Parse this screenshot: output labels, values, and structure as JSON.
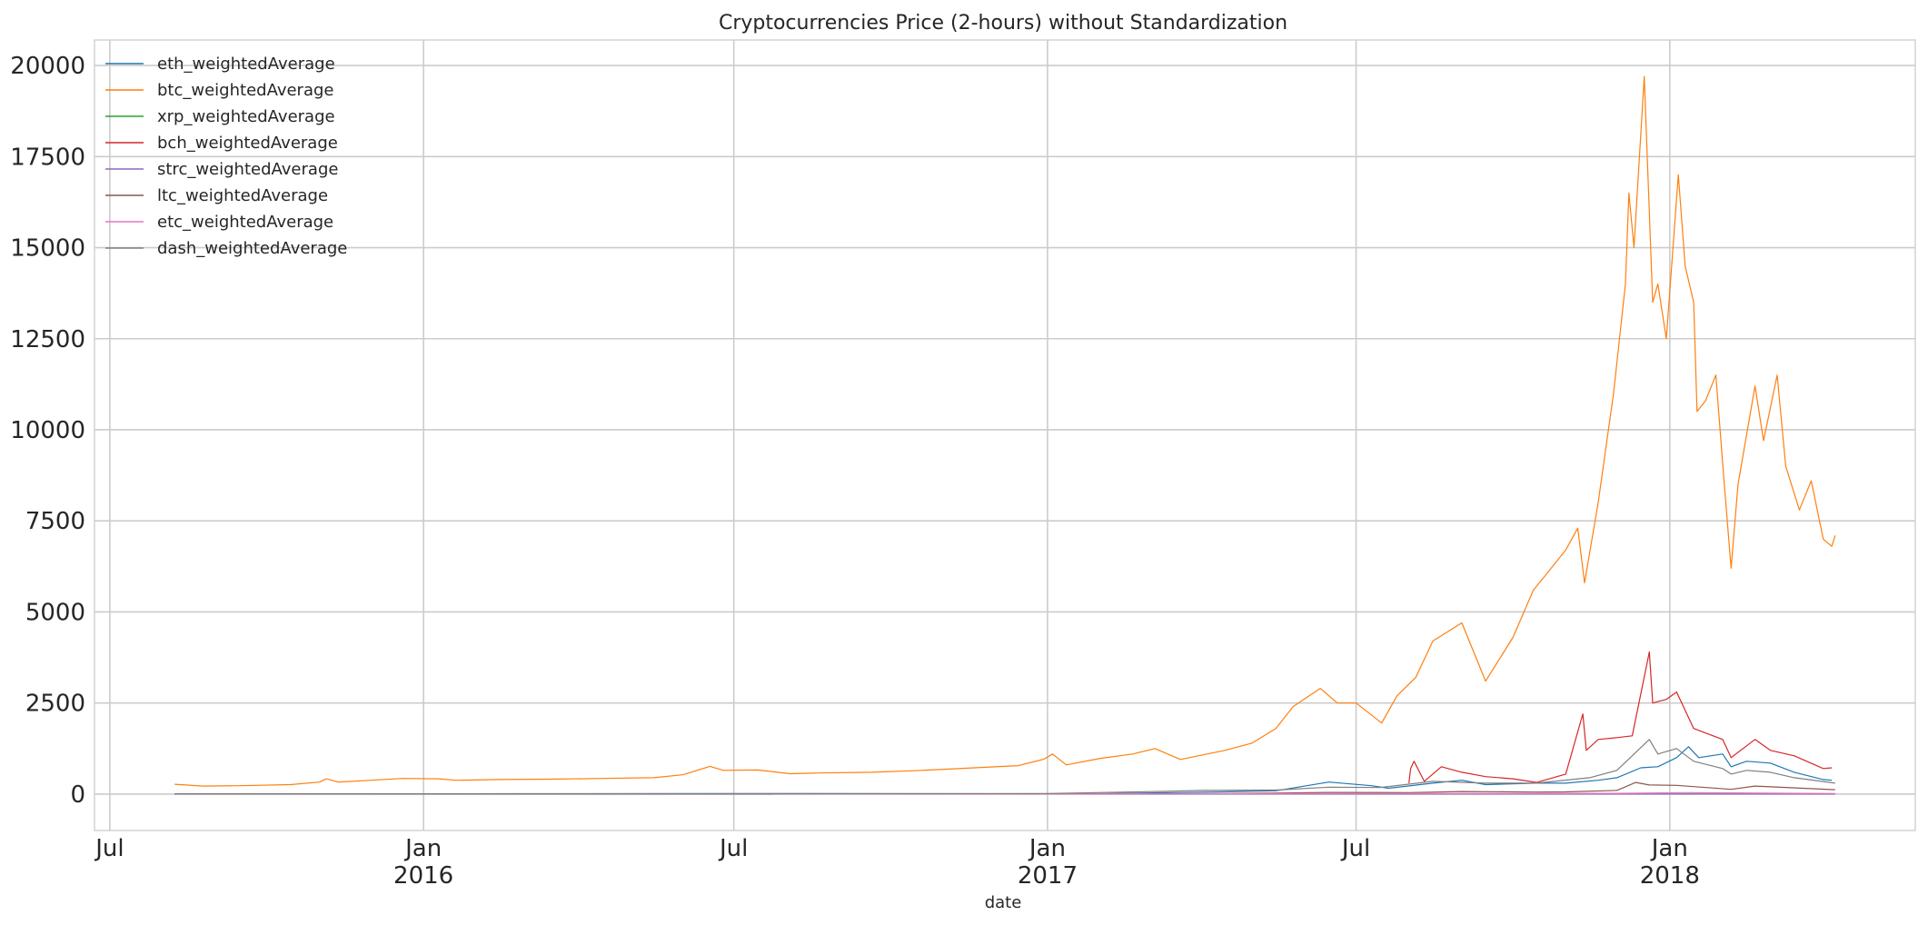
{
  "chart_data": {
    "type": "line",
    "title": "Cryptocurrencies Price (2-hours) without Standardization",
    "xlabel": "date",
    "ylabel": "",
    "xlim": [
      "2015-06-22",
      "2018-05-25"
    ],
    "ylim": [
      -1000,
      20700
    ],
    "yticks": [
      0,
      2500,
      5000,
      7500,
      10000,
      12500,
      15000,
      17500,
      20000
    ],
    "ytick_labels": [
      "0",
      "2500",
      "5000",
      "7500",
      "10000",
      "12500",
      "15000",
      "17500",
      "20000"
    ],
    "xticks": [
      {
        "date": "2015-07-01",
        "label": "Jul",
        "sublabel": ""
      },
      {
        "date": "2016-01-01",
        "label": "Jan",
        "sublabel": "2016"
      },
      {
        "date": "2016-07-01",
        "label": "Jul",
        "sublabel": ""
      },
      {
        "date": "2017-01-01",
        "label": "Jan",
        "sublabel": "2017"
      },
      {
        "date": "2017-07-01",
        "label": "Jul",
        "sublabel": ""
      },
      {
        "date": "2018-01-01",
        "label": "Jan",
        "sublabel": "2018"
      }
    ],
    "grid": true,
    "legend_position": "top-left",
    "series": [
      {
        "name": "eth_weightedAverage",
        "color": "#1f77b4",
        "points": [
          [
            "2015-08-08",
            1
          ],
          [
            "2016-03-01",
            10
          ],
          [
            "2016-06-15",
            15
          ],
          [
            "2016-12-01",
            8
          ],
          [
            "2017-02-01",
            11
          ],
          [
            "2017-03-15",
            40
          ],
          [
            "2017-04-15",
            60
          ],
          [
            "2017-05-15",
            90
          ],
          [
            "2017-06-15",
            330
          ],
          [
            "2017-07-10",
            230
          ],
          [
            "2017-07-20",
            160
          ],
          [
            "2017-08-15",
            300
          ],
          [
            "2017-09-01",
            380
          ],
          [
            "2017-09-15",
            260
          ],
          [
            "2017-10-15",
            300
          ],
          [
            "2017-11-01",
            300
          ],
          [
            "2017-11-20",
            380
          ],
          [
            "2017-12-01",
            450
          ],
          [
            "2017-12-15",
            720
          ],
          [
            "2017-12-25",
            750
          ],
          [
            "2018-01-05",
            1000
          ],
          [
            "2018-01-12",
            1300
          ],
          [
            "2018-01-18",
            1000
          ],
          [
            "2018-02-01",
            1100
          ],
          [
            "2018-02-06",
            750
          ],
          [
            "2018-02-15",
            900
          ],
          [
            "2018-03-01",
            850
          ],
          [
            "2018-03-15",
            600
          ],
          [
            "2018-04-01",
            400
          ],
          [
            "2018-04-06",
            380
          ]
        ]
      },
      {
        "name": "btc_weightedAverage",
        "color": "#ff7f0e",
        "points": [
          [
            "2015-08-08",
            270
          ],
          [
            "2015-08-25",
            220
          ],
          [
            "2015-09-15",
            230
          ],
          [
            "2015-10-15",
            260
          ],
          [
            "2015-11-01",
            330
          ],
          [
            "2015-11-05",
            420
          ],
          [
            "2015-11-12",
            330
          ],
          [
            "2015-12-01",
            380
          ],
          [
            "2015-12-20",
            430
          ],
          [
            "2016-01-10",
            420
          ],
          [
            "2016-01-20",
            380
          ],
          [
            "2016-02-15",
            400
          ],
          [
            "2016-03-15",
            410
          ],
          [
            "2016-04-15",
            430
          ],
          [
            "2016-05-15",
            450
          ],
          [
            "2016-06-01",
            530
          ],
          [
            "2016-06-17",
            760
          ],
          [
            "2016-06-25",
            650
          ],
          [
            "2016-07-15",
            660
          ],
          [
            "2016-08-03",
            560
          ],
          [
            "2016-08-20",
            580
          ],
          [
            "2016-09-20",
            600
          ],
          [
            "2016-10-15",
            640
          ],
          [
            "2016-11-15",
            710
          ],
          [
            "2016-12-15",
            780
          ],
          [
            "2016-12-30",
            960
          ],
          [
            "2017-01-04",
            1100
          ],
          [
            "2017-01-12",
            800
          ],
          [
            "2017-02-01",
            980
          ],
          [
            "2017-02-20",
            1100
          ],
          [
            "2017-03-05",
            1250
          ],
          [
            "2017-03-20",
            950
          ],
          [
            "2017-04-15",
            1200
          ],
          [
            "2017-05-01",
            1400
          ],
          [
            "2017-05-15",
            1800
          ],
          [
            "2017-05-25",
            2400
          ],
          [
            "2017-06-10",
            2900
          ],
          [
            "2017-06-20",
            2500
          ],
          [
            "2017-07-01",
            2500
          ],
          [
            "2017-07-16",
            1950
          ],
          [
            "2017-07-25",
            2700
          ],
          [
            "2017-08-05",
            3200
          ],
          [
            "2017-08-15",
            4200
          ],
          [
            "2017-09-01",
            4700
          ],
          [
            "2017-09-15",
            3100
          ],
          [
            "2017-10-01",
            4300
          ],
          [
            "2017-10-13",
            5600
          ],
          [
            "2017-10-20",
            6000
          ],
          [
            "2017-11-01",
            6700
          ],
          [
            "2017-11-08",
            7300
          ],
          [
            "2017-11-12",
            5800
          ],
          [
            "2017-11-20",
            8000
          ],
          [
            "2017-11-29",
            11000
          ],
          [
            "2017-12-06",
            14000
          ],
          [
            "2017-12-08",
            16500
          ],
          [
            "2017-12-11",
            15000
          ],
          [
            "2017-12-17",
            19700
          ],
          [
            "2017-12-22",
            13500
          ],
          [
            "2017-12-25",
            14000
          ],
          [
            "2017-12-30",
            12500
          ],
          [
            "2018-01-06",
            17000
          ],
          [
            "2018-01-10",
            14500
          ],
          [
            "2018-01-15",
            13500
          ],
          [
            "2018-01-17",
            10500
          ],
          [
            "2018-01-22",
            10800
          ],
          [
            "2018-01-28",
            11500
          ],
          [
            "2018-02-02",
            8500
          ],
          [
            "2018-02-06",
            6200
          ],
          [
            "2018-02-10",
            8500
          ],
          [
            "2018-02-20",
            11200
          ],
          [
            "2018-02-25",
            9700
          ],
          [
            "2018-03-05",
            11500
          ],
          [
            "2018-03-10",
            9000
          ],
          [
            "2018-03-18",
            7800
          ],
          [
            "2018-03-25",
            8600
          ],
          [
            "2018-04-01",
            7000
          ],
          [
            "2018-04-06",
            6800
          ],
          [
            "2018-04-08",
            7100
          ]
        ]
      },
      {
        "name": "xrp_weightedAverage",
        "color": "#2ca02c",
        "points": [
          [
            "2015-08-08",
            0
          ],
          [
            "2017-05-15",
            0.3
          ],
          [
            "2017-12-30",
            2.5
          ],
          [
            "2018-01-10",
            2
          ],
          [
            "2018-04-08",
            0.5
          ]
        ]
      },
      {
        "name": "bch_weightedAverage",
        "color": "#d62728",
        "points": [
          [
            "2017-08-01",
            300
          ],
          [
            "2017-08-02",
            700
          ],
          [
            "2017-08-04",
            900
          ],
          [
            "2017-08-10",
            350
          ],
          [
            "2017-08-20",
            750
          ],
          [
            "2017-09-01",
            600
          ],
          [
            "2017-09-15",
            480
          ],
          [
            "2017-10-01",
            420
          ],
          [
            "2017-10-15",
            320
          ],
          [
            "2017-11-01",
            550
          ],
          [
            "2017-11-11",
            2200
          ],
          [
            "2017-11-13",
            1200
          ],
          [
            "2017-11-20",
            1500
          ],
          [
            "2017-12-01",
            1550
          ],
          [
            "2017-12-10",
            1600
          ],
          [
            "2017-12-20",
            3900
          ],
          [
            "2017-12-22",
            2500
          ],
          [
            "2017-12-30",
            2600
          ],
          [
            "2018-01-05",
            2800
          ],
          [
            "2018-01-15",
            1800
          ],
          [
            "2018-02-01",
            1500
          ],
          [
            "2018-02-06",
            1000
          ],
          [
            "2018-02-20",
            1500
          ],
          [
            "2018-03-01",
            1200
          ],
          [
            "2018-03-15",
            1050
          ],
          [
            "2018-04-01",
            700
          ],
          [
            "2018-04-06",
            720
          ]
        ]
      },
      {
        "name": "strc_weightedAverage",
        "color": "#9467bd",
        "points": [
          [
            "2015-08-08",
            0
          ],
          [
            "2017-05-15",
            0.1
          ],
          [
            "2018-01-05",
            0.5
          ],
          [
            "2018-04-08",
            0.2
          ]
        ]
      },
      {
        "name": "ltc_weightedAverage",
        "color": "#8c564b",
        "points": [
          [
            "2015-08-08",
            4
          ],
          [
            "2016-06-01",
            4
          ],
          [
            "2017-01-01",
            4
          ],
          [
            "2017-04-15",
            10
          ],
          [
            "2017-05-20",
            30
          ],
          [
            "2017-06-15",
            45
          ],
          [
            "2017-08-01",
            40
          ],
          [
            "2017-09-01",
            70
          ],
          [
            "2017-10-15",
            55
          ],
          [
            "2017-11-01",
            60
          ],
          [
            "2017-12-01",
            100
          ],
          [
            "2017-12-12",
            320
          ],
          [
            "2017-12-20",
            250
          ],
          [
            "2018-01-05",
            240
          ],
          [
            "2018-02-06",
            130
          ],
          [
            "2018-02-20",
            220
          ],
          [
            "2018-03-01",
            200
          ],
          [
            "2018-04-08",
            120
          ]
        ]
      },
      {
        "name": "etc_weightedAverage",
        "color": "#e377c2",
        "points": [
          [
            "2016-07-24",
            1
          ],
          [
            "2016-12-01",
            1
          ],
          [
            "2017-05-15",
            10
          ],
          [
            "2017-08-01",
            15
          ],
          [
            "2017-12-01",
            20
          ],
          [
            "2018-01-10",
            40
          ],
          [
            "2018-04-08",
            15
          ]
        ]
      },
      {
        "name": "dash_weightedAverage",
        "color": "#7f7f7f",
        "points": [
          [
            "2015-08-08",
            3
          ],
          [
            "2016-06-01",
            8
          ],
          [
            "2017-01-01",
            12
          ],
          [
            "2017-03-15",
            80
          ],
          [
            "2017-04-01",
            100
          ],
          [
            "2017-05-15",
            110
          ],
          [
            "2017-06-15",
            190
          ],
          [
            "2017-07-15",
            180
          ],
          [
            "2017-08-15",
            350
          ],
          [
            "2017-09-15",
            300
          ],
          [
            "2017-10-15",
            300
          ],
          [
            "2017-11-15",
            450
          ],
          [
            "2017-12-01",
            650
          ],
          [
            "2017-12-20",
            1500
          ],
          [
            "2017-12-25",
            1100
          ],
          [
            "2018-01-05",
            1250
          ],
          [
            "2018-01-15",
            900
          ],
          [
            "2018-02-01",
            700
          ],
          [
            "2018-02-06",
            550
          ],
          [
            "2018-02-15",
            650
          ],
          [
            "2018-03-01",
            600
          ],
          [
            "2018-03-15",
            450
          ],
          [
            "2018-04-08",
            300
          ]
        ]
      }
    ]
  }
}
